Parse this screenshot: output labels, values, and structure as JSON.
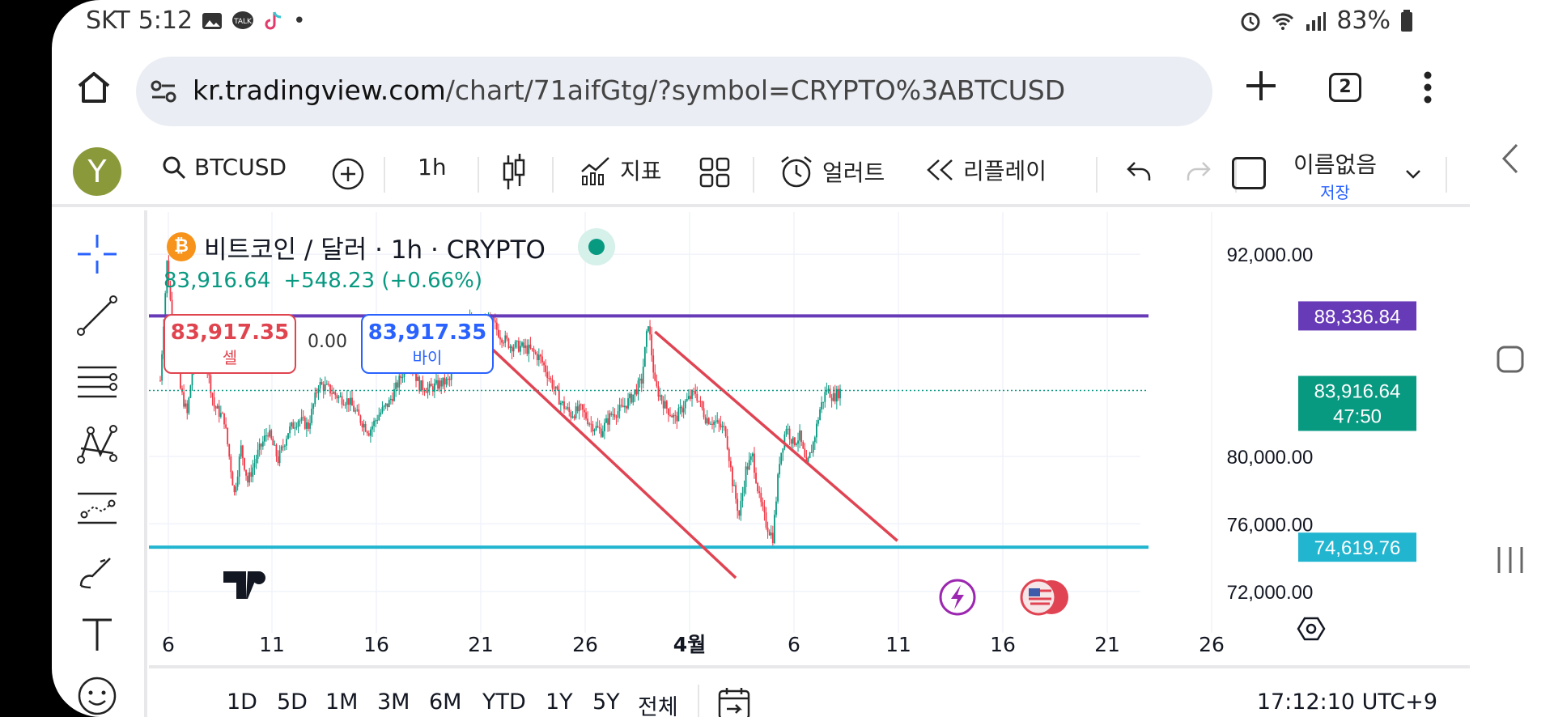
{
  "status": {
    "carrier": "SKT",
    "time": "5:12",
    "battery": "83%"
  },
  "browser": {
    "url_domain": "kr.tradingview.com",
    "url_path": "/chart/71aifGtg/?symbol=CRYPTO%3ABTCUSD",
    "tab_count": "2"
  },
  "toolbar": {
    "avatar_letter": "Y",
    "symbol": "BTCUSD",
    "interval": "1h",
    "indicators": "지표",
    "alerts": "얼러트",
    "replay": "리플레이",
    "layout_name": "이름없음",
    "save": "저장"
  },
  "chart": {
    "title": "비트코인 / 달러 · 1h · CRYPTO",
    "last_price": "83,916.64",
    "change": "+548.23 (+0.66%)",
    "sell_price": "83,917.35",
    "sell_label": "셀",
    "buy_price": "83,917.35",
    "buy_label": "바이",
    "spread": "0.00",
    "clock": "17:12:10 UTC+9"
  },
  "chart_data": {
    "type": "candlestick",
    "symbol": "BTCUSD",
    "interval": "1h",
    "x_ticks": [
      "6",
      "11",
      "16",
      "21",
      "26",
      "4월",
      "6",
      "11",
      "16",
      "21",
      "26"
    ],
    "y_ticks": [
      "92,000.00",
      "80,000.00",
      "76,000.00",
      "72,000.00"
    ],
    "price_labels": [
      {
        "value": "88,336.84",
        "color": "#673ab7"
      },
      {
        "value": "83,916.64",
        "sub": "47:50",
        "color": "#089981"
      },
      {
        "value": "74,619.76",
        "color": "#22b5d0"
      }
    ],
    "horizontal_lines": [
      88336.84,
      74619.76
    ],
    "current_price_line": 83916.64,
    "ylim": [
      70500,
      94500
    ],
    "close_path": [
      [
        0,
        84500
      ],
      [
        4,
        91500
      ],
      [
        8,
        87000
      ],
      [
        12,
        84000
      ],
      [
        16,
        82500
      ],
      [
        20,
        86000
      ],
      [
        26,
        86300
      ],
      [
        32,
        83000
      ],
      [
        38,
        82200
      ],
      [
        44,
        77800
      ],
      [
        48,
        80500
      ],
      [
        52,
        78500
      ],
      [
        58,
        80200
      ],
      [
        64,
        81500
      ],
      [
        70,
        79800
      ],
      [
        76,
        81500
      ],
      [
        82,
        82200
      ],
      [
        88,
        81800
      ],
      [
        94,
        84300
      ],
      [
        100,
        84000
      ],
      [
        106,
        83500
      ],
      [
        112,
        83300
      ],
      [
        118,
        82300
      ],
      [
        124,
        81500
      ],
      [
        130,
        82500
      ],
      [
        136,
        83200
      ],
      [
        142,
        84500
      ],
      [
        148,
        85800
      ],
      [
        154,
        84200
      ],
      [
        160,
        84000
      ],
      [
        166,
        84300
      ],
      [
        172,
        84500
      ],
      [
        178,
        86000
      ],
      [
        184,
        88000
      ],
      [
        190,
        87500
      ],
      [
        196,
        88200
      ],
      [
        202,
        87200
      ],
      [
        208,
        86600
      ],
      [
        214,
        86500
      ],
      [
        220,
        86300
      ],
      [
        226,
        85800
      ],
      [
        232,
        84500
      ],
      [
        238,
        83200
      ],
      [
        244,
        82500
      ],
      [
        250,
        82800
      ],
      [
        256,
        81900
      ],
      [
        262,
        81500
      ],
      [
        268,
        82500
      ],
      [
        274,
        82800
      ],
      [
        280,
        83500
      ],
      [
        286,
        84500
      ],
      [
        290,
        88000
      ],
      [
        294,
        84200
      ],
      [
        300,
        83000
      ],
      [
        306,
        82200
      ],
      [
        312,
        83200
      ],
      [
        318,
        83800
      ],
      [
        324,
        82300
      ],
      [
        330,
        82000
      ],
      [
        336,
        81500
      ],
      [
        340,
        78500
      ],
      [
        344,
        76500
      ],
      [
        348,
        79200
      ],
      [
        352,
        80000
      ],
      [
        356,
        77500
      ],
      [
        360,
        76000
      ],
      [
        364,
        75200
      ],
      [
        368,
        79800
      ],
      [
        372,
        81800
      ],
      [
        376,
        80800
      ],
      [
        380,
        81200
      ],
      [
        384,
        79300
      ],
      [
        388,
        80800
      ],
      [
        392,
        82800
      ],
      [
        396,
        84000
      ],
      [
        400,
        83500
      ],
      [
        404,
        83900
      ]
    ],
    "trendlines": [
      {
        "from": [
          182,
          87800
        ],
        "to": [
          342,
          72800
        ],
        "color": "#e04453"
      },
      {
        "from": [
          294,
          87400
        ],
        "to": [
          438,
          75000
        ],
        "color": "#e04453"
      }
    ],
    "event_markers": [
      "lightning",
      "us-flag"
    ]
  }
}
